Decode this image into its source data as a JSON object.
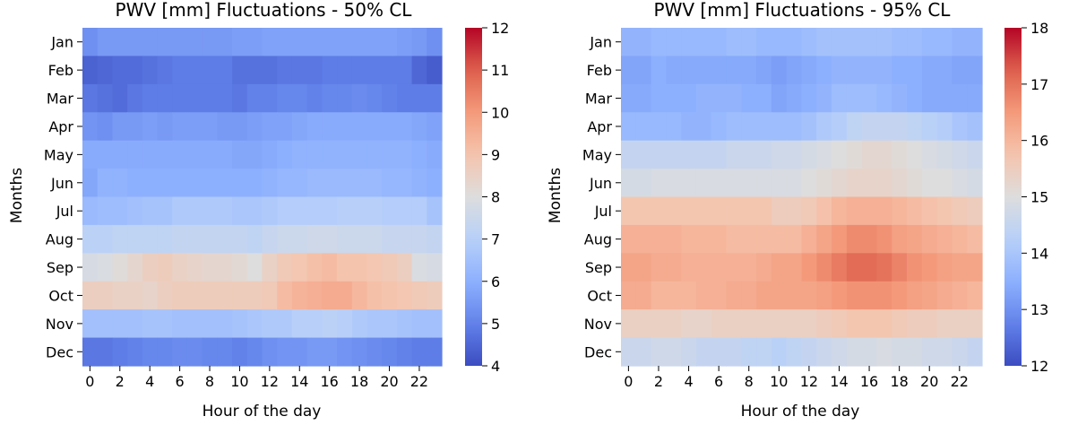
{
  "chart_data": [
    {
      "type": "heatmap",
      "title": "PWV [mm] Fluctuations - 50% CL",
      "xlabel": "Hour of the day",
      "ylabel": "Months",
      "x": [
        0,
        1,
        2,
        3,
        4,
        5,
        6,
        7,
        8,
        9,
        10,
        11,
        12,
        13,
        14,
        15,
        16,
        17,
        18,
        19,
        20,
        21,
        22,
        23
      ],
      "x_tick_labels": [
        "0",
        "2",
        "4",
        "6",
        "8",
        "10",
        "12",
        "14",
        "16",
        "18",
        "20",
        "22"
      ],
      "y": [
        "Jan",
        "Feb",
        "Mar",
        "Apr",
        "May",
        "Jun",
        "Jul",
        "Aug",
        "Sep",
        "Oct",
        "Nov",
        "Dec"
      ],
      "colorbar": {
        "min": 4,
        "max": 12,
        "ticks": [
          4,
          5,
          6,
          7,
          8,
          9,
          10,
          11,
          12
        ],
        "colormap": "coolwarm"
      },
      "z": [
        [
          5.3,
          5.5,
          5.5,
          5.5,
          5.5,
          5.5,
          5.5,
          5.5,
          5.5,
          5.5,
          5.6,
          5.6,
          5.7,
          5.7,
          5.7,
          5.7,
          5.7,
          5.7,
          5.7,
          5.7,
          5.7,
          5.6,
          5.5,
          5.3
        ],
        [
          4.4,
          4.5,
          4.6,
          4.6,
          4.7,
          4.8,
          4.9,
          4.9,
          4.9,
          4.9,
          4.7,
          4.7,
          4.7,
          4.8,
          4.8,
          4.8,
          4.9,
          4.9,
          4.9,
          4.9,
          4.9,
          4.9,
          4.5,
          4.3
        ],
        [
          4.8,
          4.7,
          4.6,
          4.8,
          4.9,
          4.9,
          4.9,
          4.9,
          4.9,
          4.9,
          4.8,
          5.0,
          5.0,
          5.1,
          5.1,
          5.0,
          5.1,
          5.1,
          5.2,
          5.1,
          5.0,
          4.9,
          4.9,
          4.9
        ],
        [
          5.4,
          5.3,
          5.5,
          5.5,
          5.6,
          5.5,
          5.6,
          5.6,
          5.6,
          5.5,
          5.5,
          5.6,
          5.7,
          5.7,
          5.8,
          5.9,
          5.9,
          5.9,
          5.9,
          5.9,
          5.9,
          5.9,
          5.8,
          5.7
        ],
        [
          5.9,
          5.9,
          5.9,
          5.9,
          5.9,
          5.9,
          5.9,
          5.9,
          5.9,
          5.9,
          5.8,
          5.8,
          5.9,
          6.0,
          6.1,
          6.1,
          6.1,
          6.1,
          6.1,
          6.1,
          6.1,
          6.1,
          6.0,
          5.9
        ],
        [
          5.8,
          6.1,
          6.1,
          6.0,
          6.0,
          6.0,
          6.0,
          6.0,
          6.0,
          6.0,
          6.0,
          6.0,
          6.1,
          6.2,
          6.2,
          6.3,
          6.3,
          6.3,
          6.3,
          6.3,
          6.2,
          6.2,
          6.1,
          6.0
        ],
        [
          6.3,
          6.4,
          6.4,
          6.5,
          6.6,
          6.6,
          6.8,
          6.8,
          6.8,
          6.8,
          6.7,
          6.7,
          6.8,
          6.9,
          6.9,
          6.9,
          6.9,
          7.0,
          7.0,
          7.0,
          6.9,
          6.9,
          6.9,
          6.6
        ],
        [
          7.1,
          7.1,
          7.2,
          7.2,
          7.2,
          7.2,
          7.3,
          7.3,
          7.3,
          7.3,
          7.3,
          7.2,
          7.4,
          7.5,
          7.5,
          7.6,
          7.6,
          7.5,
          7.5,
          7.5,
          7.4,
          7.4,
          7.4,
          7.3
        ],
        [
          7.8,
          7.9,
          8.1,
          8.3,
          8.6,
          8.7,
          8.5,
          8.4,
          8.3,
          8.3,
          8.2,
          8.0,
          8.5,
          8.8,
          8.9,
          9.1,
          9.2,
          9.0,
          9.0,
          8.9,
          8.8,
          8.6,
          7.9,
          7.8
        ],
        [
          8.6,
          8.6,
          8.5,
          8.5,
          8.4,
          8.6,
          8.7,
          8.7,
          8.7,
          8.7,
          8.7,
          8.7,
          8.8,
          9.2,
          9.4,
          9.5,
          9.6,
          9.6,
          9.3,
          9.1,
          9.0,
          8.9,
          8.8,
          8.7
        ],
        [
          6.5,
          6.5,
          6.5,
          6.5,
          6.6,
          6.6,
          6.5,
          6.5,
          6.5,
          6.5,
          6.6,
          6.7,
          6.8,
          6.8,
          7.0,
          7.0,
          7.1,
          7.0,
          6.8,
          6.7,
          6.7,
          6.6,
          6.5,
          6.5
        ],
        [
          4.8,
          4.8,
          4.9,
          5.0,
          5.1,
          5.1,
          5.2,
          5.2,
          5.1,
          5.1,
          5.0,
          5.1,
          5.3,
          5.4,
          5.4,
          5.5,
          5.5,
          5.4,
          5.3,
          5.2,
          5.1,
          5.0,
          4.9,
          4.9
        ]
      ]
    },
    {
      "type": "heatmap",
      "title": "PWV [mm] Fluctuations - 95% CL",
      "xlabel": "Hour of the day",
      "ylabel": "Months",
      "x": [
        0,
        1,
        2,
        3,
        4,
        5,
        6,
        7,
        8,
        9,
        10,
        11,
        12,
        13,
        14,
        15,
        16,
        17,
        18,
        19,
        20,
        21,
        22,
        23
      ],
      "x_tick_labels": [
        "0",
        "2",
        "4",
        "6",
        "8",
        "10",
        "12",
        "14",
        "16",
        "18",
        "20",
        "22"
      ],
      "y": [
        "Jan",
        "Feb",
        "Mar",
        "Apr",
        "May",
        "Jun",
        "Jul",
        "Aug",
        "Sep",
        "Oct",
        "Nov",
        "Dec"
      ],
      "colorbar": {
        "min": 12,
        "max": 18,
        "ticks": [
          12,
          13,
          14,
          15,
          16,
          17
        ],
        "tick_labels_shown": [
          12,
          13,
          14,
          15,
          16,
          17,
          18
        ],
        "colormap": "coolwarm"
      },
      "z": [
        [
          13.6,
          13.6,
          13.7,
          13.7,
          13.7,
          13.7,
          13.7,
          13.8,
          13.8,
          13.7,
          13.7,
          13.7,
          13.8,
          13.9,
          13.9,
          13.9,
          13.9,
          13.9,
          13.8,
          13.8,
          13.7,
          13.7,
          13.6,
          13.6
        ],
        [
          13.3,
          13.3,
          13.5,
          13.4,
          13.4,
          13.4,
          13.4,
          13.4,
          13.4,
          13.3,
          13.2,
          13.3,
          13.4,
          13.5,
          13.6,
          13.6,
          13.6,
          13.6,
          13.5,
          13.5,
          13.4,
          13.4,
          13.3,
          13.3
        ],
        [
          13.4,
          13.4,
          13.5,
          13.5,
          13.5,
          13.6,
          13.6,
          13.6,
          13.5,
          13.5,
          13.3,
          13.4,
          13.5,
          13.6,
          13.8,
          13.8,
          13.8,
          13.7,
          13.6,
          13.5,
          13.4,
          13.4,
          13.4,
          13.4
        ],
        [
          13.7,
          13.7,
          13.7,
          13.7,
          13.6,
          13.6,
          13.7,
          13.8,
          13.8,
          13.8,
          13.8,
          13.8,
          13.9,
          14.1,
          14.2,
          14.4,
          14.5,
          14.5,
          14.5,
          14.4,
          14.3,
          14.2,
          14.0,
          13.9
        ],
        [
          14.5,
          14.5,
          14.5,
          14.5,
          14.5,
          14.5,
          14.5,
          14.6,
          14.6,
          14.6,
          14.7,
          14.7,
          14.8,
          14.9,
          15.0,
          15.1,
          15.2,
          15.2,
          15.1,
          15.0,
          14.9,
          14.8,
          14.7,
          14.6
        ],
        [
          14.8,
          14.8,
          14.9,
          14.9,
          14.9,
          14.9,
          14.9,
          14.9,
          14.9,
          14.9,
          14.9,
          14.9,
          15.0,
          15.1,
          15.2,
          15.3,
          15.3,
          15.3,
          15.2,
          15.1,
          15.0,
          15.0,
          14.9,
          14.8
        ],
        [
          15.7,
          15.7,
          15.7,
          15.7,
          15.7,
          15.7,
          15.7,
          15.7,
          15.7,
          15.7,
          15.5,
          15.5,
          15.6,
          15.8,
          16.0,
          16.1,
          16.1,
          16.1,
          16.0,
          15.9,
          15.8,
          15.7,
          15.6,
          15.5
        ],
        [
          16.1,
          16.1,
          16.1,
          16.1,
          16.0,
          16.0,
          16.0,
          15.9,
          15.9,
          15.9,
          15.9,
          15.9,
          16.1,
          16.3,
          16.5,
          16.7,
          16.7,
          16.6,
          16.4,
          16.3,
          16.2,
          16.1,
          16.0,
          15.9
        ],
        [
          16.3,
          16.3,
          16.2,
          16.2,
          16.1,
          16.1,
          16.1,
          16.1,
          16.1,
          16.2,
          16.3,
          16.3,
          16.5,
          16.7,
          16.9,
          17.1,
          17.1,
          17.0,
          16.8,
          16.6,
          16.5,
          16.4,
          16.3,
          16.3
        ],
        [
          16.2,
          16.2,
          16.0,
          16.0,
          16.0,
          16.1,
          16.1,
          16.2,
          16.2,
          16.3,
          16.3,
          16.3,
          16.3,
          16.4,
          16.5,
          16.6,
          16.6,
          16.6,
          16.5,
          16.4,
          16.3,
          16.2,
          16.1,
          16.0
        ],
        [
          15.4,
          15.4,
          15.4,
          15.4,
          15.3,
          15.3,
          15.4,
          15.4,
          15.4,
          15.4,
          15.4,
          15.4,
          15.4,
          15.5,
          15.6,
          15.7,
          15.7,
          15.7,
          15.6,
          15.5,
          15.5,
          15.4,
          15.4,
          15.4
        ],
        [
          14.6,
          14.6,
          14.7,
          14.7,
          14.6,
          14.5,
          14.5,
          14.5,
          14.4,
          14.4,
          14.3,
          14.4,
          14.5,
          14.6,
          14.7,
          14.8,
          14.8,
          14.9,
          14.8,
          14.8,
          14.7,
          14.7,
          14.6,
          14.5
        ]
      ]
    }
  ]
}
